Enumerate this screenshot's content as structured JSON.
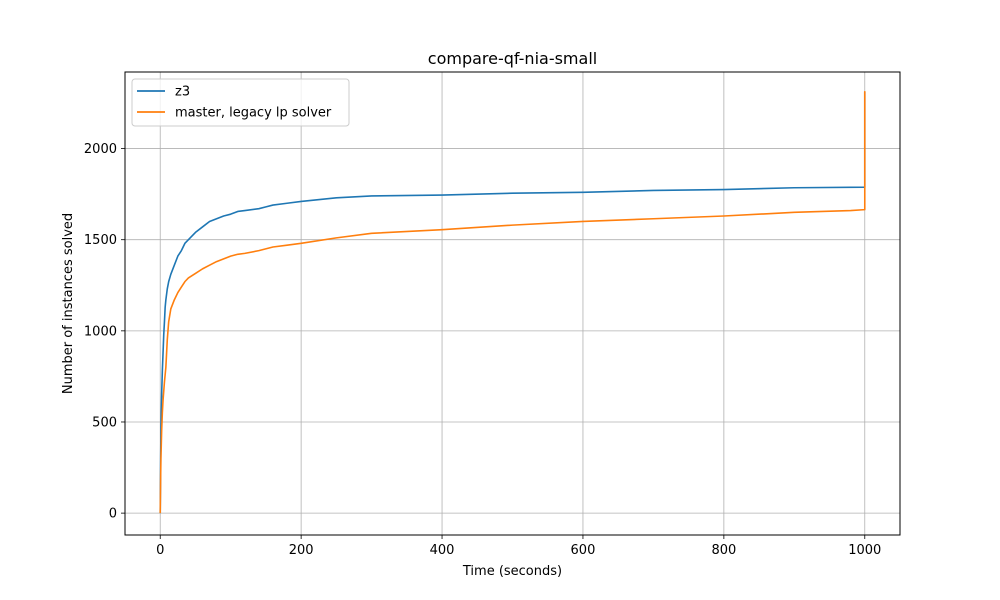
{
  "chart_data": {
    "type": "line",
    "title": "compare-qf-nia-small",
    "xlabel": "Time (seconds)",
    "ylabel": "Number of instances solved",
    "xlim": [
      -50,
      1050
    ],
    "ylim": [
      -120,
      2420
    ],
    "xticks": [
      0,
      200,
      400,
      600,
      800,
      1000
    ],
    "yticks": [
      0,
      500,
      1000,
      1500,
      2000
    ],
    "grid": true,
    "legend_position": "top-left",
    "series": [
      {
        "name": "z3",
        "color": "#1f77b4",
        "x": [
          0,
          0.3,
          0.6,
          1,
          1.5,
          2,
          3,
          4,
          5,
          6,
          7,
          8,
          10,
          12,
          15,
          20,
          25,
          30,
          35,
          40,
          50,
          60,
          70,
          80,
          90,
          100,
          110,
          120,
          140,
          150,
          160,
          180,
          200,
          250,
          300,
          400,
          500,
          600,
          700,
          800,
          900,
          1000,
          1000,
          1000
        ],
        "y": [
          0,
          150,
          300,
          450,
          550,
          650,
          780,
          880,
          980,
          1050,
          1130,
          1170,
          1230,
          1270,
          1310,
          1360,
          1410,
          1440,
          1480,
          1500,
          1540,
          1570,
          1600,
          1615,
          1630,
          1640,
          1655,
          1660,
          1670,
          1680,
          1690,
          1700,
          1710,
          1730,
          1740,
          1745,
          1755,
          1760,
          1770,
          1775,
          1785,
          1788,
          1788,
          2310
        ]
      },
      {
        "name": "master, legacy lp solver",
        "color": "#ff7f0e",
        "x": [
          0,
          0.3,
          0.6,
          1,
          2,
          3,
          4,
          6,
          8,
          10,
          12,
          15,
          20,
          25,
          30,
          35,
          40,
          50,
          60,
          70,
          80,
          90,
          100,
          110,
          120,
          140,
          160,
          180,
          200,
          250,
          300,
          400,
          500,
          600,
          700,
          800,
          900,
          980,
          1000,
          1000,
          1000
        ],
        "y": [
          0,
          100,
          200,
          300,
          450,
          550,
          620,
          720,
          800,
          950,
          1050,
          1120,
          1170,
          1210,
          1240,
          1270,
          1290,
          1315,
          1340,
          1360,
          1380,
          1395,
          1410,
          1420,
          1425,
          1440,
          1460,
          1470,
          1480,
          1510,
          1535,
          1555,
          1580,
          1600,
          1615,
          1630,
          1650,
          1660,
          1665,
          1665,
          2315
        ]
      }
    ]
  }
}
